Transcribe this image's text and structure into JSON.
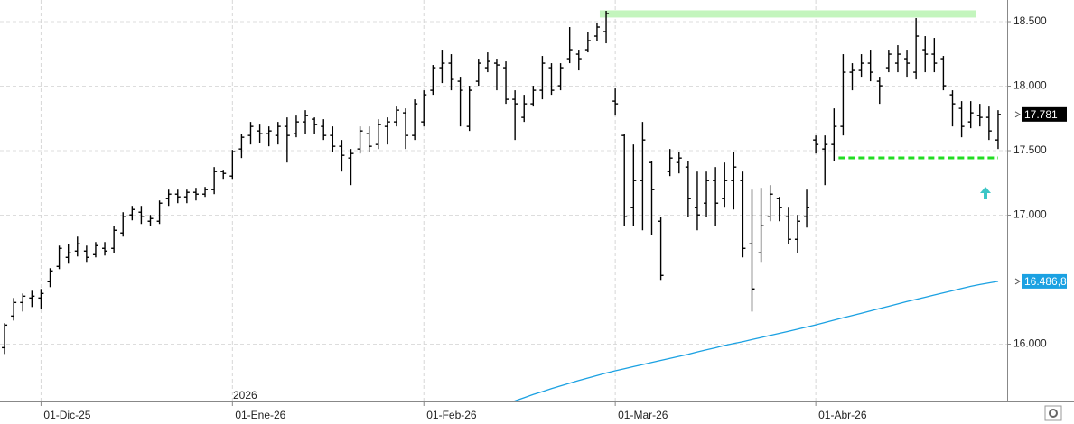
{
  "chart_data": {
    "type": "ohlc",
    "categories": [
      null,
      null,
      null,
      null,
      "01-Dic-25",
      null,
      null,
      null,
      null,
      null,
      null,
      null,
      null,
      null,
      null,
      null,
      null,
      null,
      null,
      null,
      null,
      null,
      null,
      null,
      null,
      "01-Ene-26",
      null,
      null,
      null,
      null,
      null,
      null,
      null,
      null,
      null,
      null,
      null,
      null,
      null,
      null,
      null,
      null,
      null,
      null,
      null,
      null,
      "01-Feb-26",
      null,
      null,
      null,
      null,
      null,
      null,
      null,
      null,
      null,
      null,
      null,
      null,
      null,
      null,
      null,
      null,
      null,
      null,
      null,
      null,
      "01-Mar-26",
      null,
      null,
      null,
      null,
      null,
      null,
      null,
      null,
      null,
      null,
      null,
      null,
      null,
      null,
      null,
      null,
      null,
      null,
      null,
      null,
      null,
      "01-Abr-26",
      null,
      null,
      null,
      null,
      null,
      null,
      null,
      null,
      null,
      null,
      null,
      null,
      null,
      null,
      null,
      null,
      null,
      null,
      null,
      null
    ],
    "open": [
      15973,
      16218,
      16323,
      16358,
      16358,
      16484,
      16603,
      16673,
      16722,
      16722,
      16694,
      16743,
      16743,
      16862,
      17002,
      17023,
      16953,
      16953,
      17128,
      17163,
      17142,
      17177,
      17163,
      17198,
      17338,
      17303,
      17513,
      17618,
      17653,
      17632,
      17618,
      17688,
      17632,
      17723,
      17744,
      17688,
      17618,
      17534,
      17443,
      17513,
      17632,
      17548,
      17688,
      17723,
      17793,
      17618,
      17723,
      17968,
      18143,
      18178,
      18038,
      17688,
      18038,
      18143,
      18178,
      18143,
      17898,
      17758,
      17863,
      17968,
      18143,
      18003,
      18213,
      18248,
      18283,
      18388,
      18423,
      17884,
      17618,
      17058,
      17268,
      17408,
      16953,
      17338,
      17408,
      17373,
      17058,
      17093,
      17268,
      17128,
      17268,
      17268,
      16778,
      16708,
      16988,
      17128,
      16988,
      16813,
      16988,
      17583,
      17513,
      17548,
      17688,
      18108,
      18122,
      18178,
      18038,
      18143,
      18178,
      18213,
      18108,
      18283,
      18248,
      18213,
      17933,
      17828,
      17723,
      17772,
      17758,
      17583
    ],
    "high": [
      16162,
      16358,
      16393,
      16414,
      16428,
      16589,
      16764,
      16778,
      16834,
      16764,
      16792,
      16792,
      16918,
      17023,
      17072,
      17072,
      17002,
      17114,
      17198,
      17198,
      17198,
      17212,
      17219,
      17373,
      17352,
      17506,
      17632,
      17723,
      17702,
      17688,
      17723,
      17758,
      17772,
      17814,
      17758,
      17744,
      17688,
      17583,
      17513,
      17688,
      17688,
      17744,
      17758,
      17842,
      17828,
      17898,
      17968,
      18164,
      18283,
      18248,
      18073,
      18003,
      18213,
      18262,
      18213,
      18192,
      17968,
      17933,
      18003,
      18234,
      18178,
      18178,
      18458,
      18283,
      18423,
      18493,
      18584,
      17982,
      17632,
      17548,
      17723,
      17422,
      16988,
      17513,
      17492,
      17422,
      17338,
      17338,
      17373,
      17408,
      17492,
      17338,
      17198,
      17212,
      17233,
      17142,
      17058,
      17002,
      17198,
      17618,
      17618,
      17828,
      18248,
      18178,
      18248,
      18283,
      18073,
      18283,
      18318,
      18283,
      18528,
      18388,
      18374,
      18234,
      17968,
      17884,
      17884,
      17863,
      17842,
      17814
    ],
    "low": [
      15924,
      16183,
      16253,
      16288,
      16274,
      16442,
      16582,
      16624,
      16680,
      16638,
      16673,
      16687,
      16708,
      16834,
      16960,
      16932,
      16918,
      16932,
      17072,
      17093,
      17093,
      17114,
      17142,
      17163,
      17282,
      17282,
      17443,
      17548,
      17562,
      17534,
      17548,
      17408,
      17604,
      17632,
      17632,
      17583,
      17492,
      17338,
      17233,
      17478,
      17492,
      17513,
      17548,
      17688,
      17513,
      17583,
      17688,
      17933,
      18024,
      17968,
      17688,
      17653,
      18003,
      18108,
      17968,
      17863,
      17583,
      17723,
      17842,
      17898,
      17933,
      17968,
      18178,
      18122,
      18262,
      18353,
      18332,
      17772,
      16918,
      16918,
      16883,
      16848,
      16498,
      17303,
      17324,
      16988,
      16883,
      16988,
      16918,
      17058,
      17044,
      16673,
      16253,
      16638,
      16953,
      16953,
      16778,
      16708,
      16904,
      17478,
      17233,
      17422,
      17618,
      17968,
      18073,
      18038,
      17863,
      18108,
      18108,
      18073,
      18052,
      18108,
      18108,
      17968,
      17688,
      17604,
      17674,
      17688,
      17583,
      17513
    ],
    "close": [
      16148,
      16323,
      16372,
      16372,
      16393,
      16568,
      16743,
      16708,
      16778,
      16673,
      16764,
      16722,
      16883,
      16988,
      17044,
      16988,
      16974,
      17093,
      17163,
      17142,
      17177,
      17163,
      17198,
      17338,
      17324,
      17492,
      17604,
      17688,
      17632,
      17653,
      17688,
      17618,
      17723,
      17772,
      17702,
      17618,
      17534,
      17464,
      17478,
      17653,
      17534,
      17702,
      17723,
      17814,
      17618,
      17863,
      17933,
      18143,
      18178,
      18052,
      17968,
      17968,
      18178,
      18192,
      18164,
      17898,
      17863,
      17863,
      17968,
      18178,
      17968,
      18143,
      18283,
      18213,
      18353,
      18458,
      18563,
      17863,
      16988,
      17268,
      17583,
      17198,
      16533,
      17443,
      17443,
      17128,
      17002,
      17268,
      17093,
      17268,
      17373,
      16743,
      16428,
      16918,
      17163,
      17058,
      16813,
      16953,
      17058,
      17548,
      17548,
      17688,
      18108,
      18122,
      18178,
      18108,
      18003,
      18248,
      18248,
      18178,
      18388,
      18248,
      18178,
      18003,
      17863,
      17688,
      17793,
      17758,
      17653,
      17781
    ],
    "close_labels": [
      null,
      null,
      null,
      null,
      null,
      null,
      null,
      null,
      null,
      null,
      null,
      null,
      null,
      null,
      null,
      null,
      null,
      null,
      null,
      null,
      null,
      null,
      null,
      null,
      null,
      null,
      null,
      null,
      null,
      null,
      null,
      null,
      null,
      null,
      null,
      null,
      null,
      null,
      null,
      null,
      null,
      null,
      null,
      null,
      null,
      null,
      null,
      null,
      null,
      null,
      null,
      null,
      null,
      null,
      null,
      null,
      null,
      null,
      null,
      null,
      null,
      null,
      null,
      null,
      null,
      null,
      null,
      null,
      null,
      null,
      null,
      null,
      null,
      null,
      null,
      null,
      null,
      null,
      null,
      null,
      null,
      null,
      null,
      null,
      null,
      null,
      null,
      null,
      null,
      null,
      null,
      null,
      null,
      null,
      null,
      null,
      null,
      null,
      null,
      null,
      null,
      null,
      null,
      null,
      null,
      null,
      null,
      null,
      null,
      "17.781"
    ],
    "color": "#000000",
    "moving_average": {
      "color": "#1ba1e2",
      "values": [
        null,
        null,
        null,
        null,
        null,
        null,
        null,
        null,
        null,
        null,
        null,
        null,
        null,
        null,
        null,
        null,
        null,
        null,
        null,
        null,
        null,
        null,
        null,
        null,
        null,
        null,
        null,
        null,
        null,
        null,
        null,
        null,
        null,
        null,
        null,
        null,
        null,
        null,
        null,
        null,
        null,
        null,
        null,
        null,
        null,
        null,
        null,
        null,
        null,
        null,
        null,
        null,
        null,
        null,
        null,
        15535,
        15560,
        15585,
        15610,
        15632,
        15655,
        15677,
        15698,
        15718,
        15738,
        15757,
        15776,
        15794,
        15810,
        15826,
        15842,
        15858,
        15874,
        15890,
        15906,
        15922,
        15940,
        15956,
        15972,
        15990,
        16005,
        16020,
        16036,
        16052,
        16068,
        16084,
        16100,
        16116,
        16133,
        16150,
        16168,
        16186,
        16204,
        16222,
        16240,
        16258,
        16276,
        16294,
        16312,
        16330,
        16347,
        16364,
        16381,
        16398,
        16415,
        16432,
        16448,
        16462,
        16475,
        16486.8
      ],
      "value_labels": [
        null,
        null,
        null,
        null,
        null,
        null,
        null,
        null,
        null,
        null,
        null,
        null,
        null,
        null,
        null,
        null,
        null,
        null,
        null,
        null,
        null,
        null,
        null,
        null,
        null,
        null,
        null,
        null,
        null,
        null,
        null,
        null,
        null,
        null,
        null,
        null,
        null,
        null,
        null,
        null,
        null,
        null,
        null,
        null,
        null,
        null,
        null,
        null,
        null,
        null,
        null,
        null,
        null,
        null,
        null,
        null,
        null,
        null,
        null,
        null,
        null,
        null,
        null,
        null,
        null,
        null,
        null,
        null,
        null,
        null,
        null,
        null,
        null,
        null,
        null,
        null,
        null,
        null,
        null,
        null,
        null,
        null,
        null,
        null,
        null,
        null,
        null,
        null,
        null,
        null,
        null,
        null,
        null,
        null,
        null,
        null,
        null,
        null,
        null,
        null,
        null,
        null,
        null,
        null,
        null,
        null,
        null,
        null,
        null,
        "16.486,8"
      ]
    },
    "levels": [
      {
        "value": 18560,
        "color": "#c3f5bd",
        "style": "band"
      },
      {
        "value": 17444,
        "color": "#22dd22",
        "style": "dashed"
      }
    ],
    "year_label": "2026",
    "ylim": [
      15556,
      18668
    ],
    "yticks": [
      {
        "value": 16000,
        "label": "16.000"
      },
      {
        "value": 17000,
        "label": "17.000"
      },
      {
        "value": 17500,
        "label": "17.500"
      },
      {
        "value": 18000,
        "label": "18.000"
      },
      {
        "value": 18500,
        "label": "18.500"
      }
    ],
    "grid": true
  }
}
